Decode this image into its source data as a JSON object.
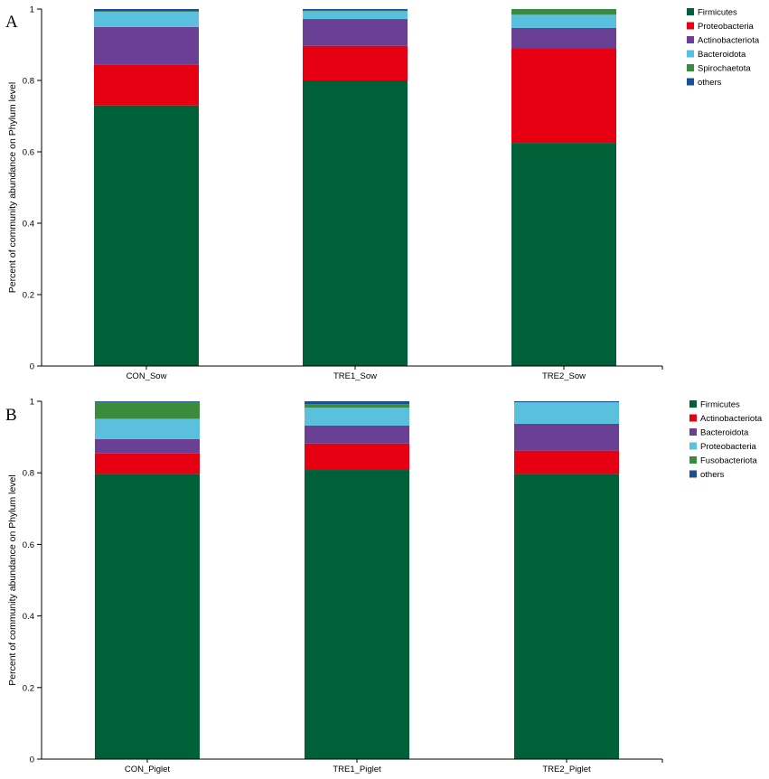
{
  "chart_data": [
    {
      "type": "bar",
      "stacked": true,
      "panel": "A",
      "ylabel": "Percent of community abundance on Phylum level",
      "ylim": [
        0,
        1
      ],
      "yticks": [
        "0",
        "0.2",
        "0.4",
        "0.6",
        "0.8",
        "1"
      ],
      "categories": [
        "CON_Sow",
        "TRE1_Sow",
        "TRE2_Sow"
      ],
      "series": [
        {
          "name": "Firmicutes",
          "color": "#006037",
          "values": [
            0.73,
            0.8,
            0.625
          ]
        },
        {
          "name": "Proteobacteria",
          "color": "#e60012",
          "values": [
            0.115,
            0.097,
            0.265
          ]
        },
        {
          "name": "Actinobacteriota",
          "color": "#694093",
          "values": [
            0.105,
            0.075,
            0.057
          ]
        },
        {
          "name": "Bacteroidota",
          "color": "#5bc0de",
          "values": [
            0.042,
            0.022,
            0.037
          ]
        },
        {
          "name": "Spirochaetota",
          "color": "#3b8a3e",
          "values": [
            0.002,
            0.002,
            0.016
          ]
        },
        {
          "name": "others",
          "color": "#1a4e96",
          "values": [
            0.006,
            0.004,
            0.0
          ]
        }
      ],
      "legend_position": "top-right"
    },
    {
      "type": "bar",
      "stacked": true,
      "panel": "B",
      "ylabel": "Percent of community abundance on Phylum level",
      "ylim": [
        0,
        1
      ],
      "yticks": [
        "0",
        "0.2",
        "0.4",
        "0.6",
        "0.8",
        "1"
      ],
      "categories": [
        "CON_Piglet",
        "TRE1_Piglet",
        "TRE2_Piglet"
      ],
      "series": [
        {
          "name": "Firmicutes",
          "color": "#006037",
          "values": [
            0.797,
            0.808,
            0.797
          ]
        },
        {
          "name": "Actinobacteriota",
          "color": "#e60012",
          "values": [
            0.057,
            0.074,
            0.065
          ]
        },
        {
          "name": "Bacteroidota",
          "color": "#694093",
          "values": [
            0.04,
            0.05,
            0.075
          ]
        },
        {
          "name": "Proteobacteria",
          "color": "#5bc0de",
          "values": [
            0.057,
            0.05,
            0.06
          ]
        },
        {
          "name": "Fusobacteriota",
          "color": "#3b8a3e",
          "values": [
            0.047,
            0.01,
            0.0
          ]
        },
        {
          "name": "others",
          "color": "#1a4e96",
          "values": [
            0.002,
            0.008,
            0.003
          ]
        }
      ],
      "legend_position": "top-right"
    }
  ]
}
